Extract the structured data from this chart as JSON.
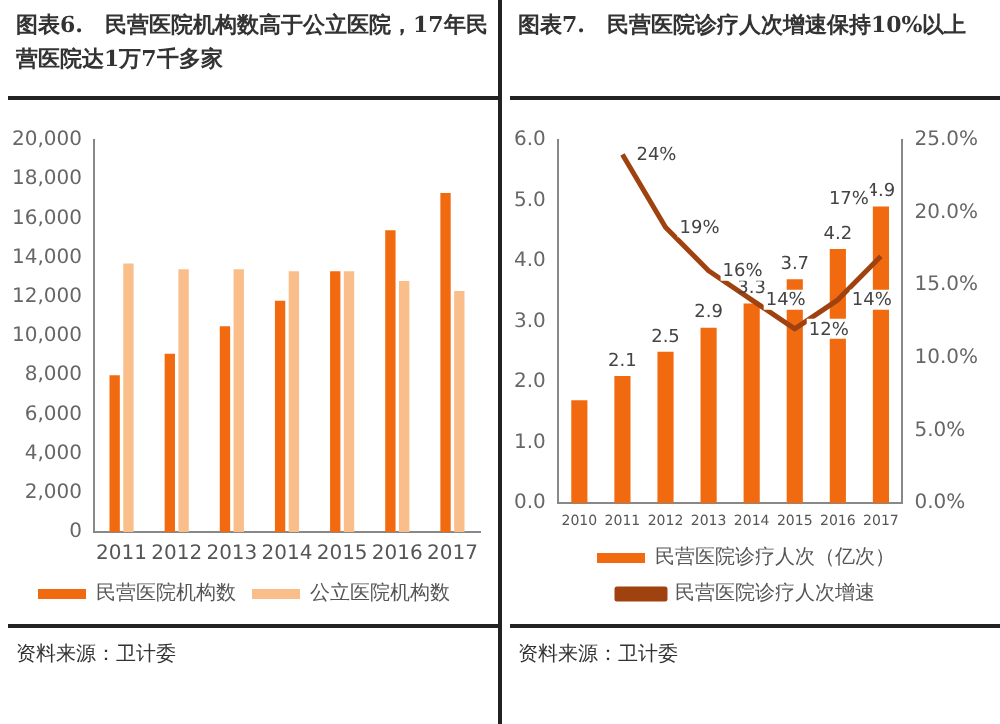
{
  "chart_data": [
    {
      "type": "bar",
      "title": "图表6.　民营医院机构数高于公立医院，17年民营医院达1万7千多家",
      "categories": [
        "2011",
        "2012",
        "2013",
        "2014",
        "2015",
        "2016",
        "2017"
      ],
      "series": [
        {
          "name": "民营医院机构数",
          "color": "#f26a10",
          "values": [
            8000,
            9100,
            10500,
            11800,
            13300,
            15400,
            17300
          ]
        },
        {
          "name": "公立医院机构数",
          "color": "#f9be8a",
          "values": [
            13700,
            13400,
            13400,
            13300,
            13300,
            12800,
            12300
          ]
        }
      ],
      "ylim": [
        0,
        20000
      ],
      "yticks": [
        0,
        {
          "value": 2000,
          "label": "2,000"
        },
        {
          "value": 4000,
          "label": "4,000"
        },
        {
          "value": 6000,
          "label": "6,000"
        },
        {
          "value": 8000,
          "label": "8,000"
        },
        {
          "value": 10000,
          "label": "10,000"
        },
        {
          "value": 12000,
          "label": "12,000"
        },
        {
          "value": 14000,
          "label": "14,000"
        },
        {
          "value": 16000,
          "label": "16,000"
        },
        {
          "value": 18000,
          "label": "18,000"
        },
        {
          "value": 20000,
          "label": "20,000"
        }
      ],
      "grid": false,
      "legend": "bottom",
      "annotations": [
        "资料来源：卫计委"
      ]
    },
    {
      "type": "bar",
      "title": "图表7.　民营医院诊疗人次增速保持10%以上",
      "categories": [
        "2010",
        "2011",
        "2012",
        "2013",
        "2014",
        "2015",
        "2016",
        "2017"
      ],
      "series": [
        {
          "name": "民营医院诊疗人次（亿次）",
          "color": "#f26a10",
          "values": [
            1.7,
            2.1,
            2.5,
            2.9,
            3.3,
            3.7,
            4.2,
            4.9
          ],
          "value_labels": [
            null,
            "2.1",
            "2.5",
            "2.9",
            "3.3",
            "3.7",
            "4.2",
            "4.9"
          ]
        },
        {
          "name": "民营医院诊疗人次增速",
          "type": "line",
          "axis": "y2",
          "color": "#a0420f",
          "values": [
            null,
            24,
            19,
            16,
            14,
            12,
            14,
            17
          ],
          "value_labels": [
            null,
            "24%",
            "19%",
            "16%",
            "14%",
            "12%",
            "14%",
            "17%"
          ]
        }
      ],
      "ylim": [
        0,
        6
      ],
      "yticks": [
        {
          "value": 0,
          "label": "0.0"
        },
        {
          "value": 1,
          "label": "1.0"
        },
        {
          "value": 2,
          "label": "2.0"
        },
        {
          "value": 3,
          "label": "3.0"
        },
        {
          "value": 4,
          "label": "4.0"
        },
        {
          "value": 5,
          "label": "5.0"
        },
        {
          "value": 6,
          "label": "6.0"
        }
      ],
      "y2lim": [
        0,
        25
      ],
      "y2ticks": [
        {
          "value": 0,
          "label": "0.0%"
        },
        {
          "value": 5,
          "label": "5.0%"
        },
        {
          "value": 10,
          "label": "10.0%"
        },
        {
          "value": 15,
          "label": "15.0%"
        },
        {
          "value": 20,
          "label": "20.0%"
        },
        {
          "value": 25,
          "label": "25.0%"
        }
      ],
      "grid": false,
      "legend": "bottom",
      "marker": "none",
      "annotations": [
        "资料来源：卫计委"
      ]
    }
  ]
}
